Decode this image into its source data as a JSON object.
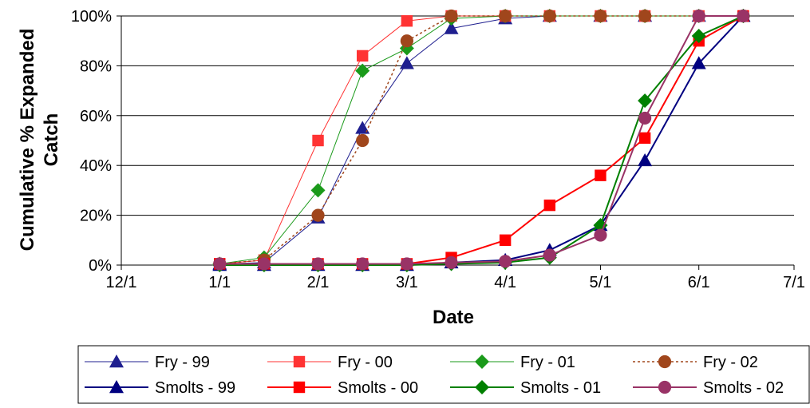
{
  "chart_data": {
    "type": "line",
    "xlabel": "Date",
    "ylabel_line1": "Cumulative % Expanded",
    "ylabel_line2": "Catch",
    "x_ticks": [
      "12/1",
      "1/1",
      "2/1",
      "3/1",
      "4/1",
      "5/1",
      "6/1",
      "7/1"
    ],
    "y_ticks": [
      "0%",
      "20%",
      "40%",
      "60%",
      "80%",
      "100%"
    ],
    "xlim": [
      "12/1",
      "7/1"
    ],
    "ylim": [
      0,
      100
    ],
    "grid": "horizontal",
    "legend": "bottom",
    "series": [
      {
        "name": "Fry - 99",
        "color": "#1f1f8f",
        "marker": "triangle",
        "line_style": "thin",
        "points": [
          [
            "1/1",
            0.5
          ],
          [
            "1/15",
            1
          ],
          [
            "2/1",
            19
          ],
          [
            "2/15",
            55
          ],
          [
            "3/1",
            81
          ],
          [
            "3/15",
            95
          ],
          [
            "4/1",
            99
          ],
          [
            "4/15",
            100
          ],
          [
            "5/1",
            100
          ],
          [
            "5/15",
            100
          ],
          [
            "6/1",
            100
          ],
          [
            "6/15",
            100
          ]
        ]
      },
      {
        "name": "Fry - 00",
        "color": "#ff3333",
        "marker": "square",
        "line_style": "thin",
        "points": [
          [
            "1/1",
            0.5
          ],
          [
            "1/15",
            2
          ],
          [
            "2/1",
            50
          ],
          [
            "2/15",
            84
          ],
          [
            "3/1",
            98
          ],
          [
            "3/15",
            100
          ],
          [
            "4/1",
            100
          ],
          [
            "4/15",
            100
          ],
          [
            "5/1",
            100
          ],
          [
            "5/15",
            100
          ],
          [
            "6/1",
            100
          ],
          [
            "6/15",
            100
          ]
        ]
      },
      {
        "name": "Fry - 01",
        "color": "#1a9a1a",
        "marker": "diamond",
        "line_style": "thin",
        "points": [
          [
            "1/1",
            0.5
          ],
          [
            "1/15",
            3
          ],
          [
            "2/1",
            30
          ],
          [
            "2/15",
            78
          ],
          [
            "3/1",
            87
          ],
          [
            "3/15",
            99
          ],
          [
            "4/1",
            100
          ],
          [
            "4/15",
            100
          ],
          [
            "5/1",
            100
          ],
          [
            "5/15",
            100
          ],
          [
            "6/1",
            100
          ],
          [
            "6/15",
            100
          ]
        ]
      },
      {
        "name": "Fry - 02",
        "color": "#a0461c",
        "marker": "circle",
        "line_style": "dotted",
        "points": [
          [
            "1/1",
            0.5
          ],
          [
            "1/15",
            2
          ],
          [
            "2/1",
            20
          ],
          [
            "2/15",
            50
          ],
          [
            "3/1",
            90
          ],
          [
            "3/15",
            100
          ],
          [
            "4/1",
            100
          ],
          [
            "4/15",
            100
          ],
          [
            "5/1",
            100
          ],
          [
            "5/15",
            100
          ],
          [
            "6/1",
            100
          ],
          [
            "6/15",
            100
          ]
        ]
      },
      {
        "name": "Smolts - 99",
        "color": "#000080",
        "marker": "triangle",
        "line_style": "thick",
        "points": [
          [
            "1/1",
            0
          ],
          [
            "1/15",
            0
          ],
          [
            "2/1",
            0
          ],
          [
            "2/15",
            0
          ],
          [
            "3/1",
            0
          ],
          [
            "3/15",
            1
          ],
          [
            "4/1",
            2
          ],
          [
            "4/15",
            6
          ],
          [
            "5/1",
            16
          ],
          [
            "5/15",
            42
          ],
          [
            "6/1",
            81
          ],
          [
            "6/15",
            100
          ]
        ]
      },
      {
        "name": "Smolts - 00",
        "color": "#ff0000",
        "marker": "square",
        "line_style": "thick",
        "points": [
          [
            "1/1",
            0.5
          ],
          [
            "1/15",
            0.5
          ],
          [
            "2/1",
            0.5
          ],
          [
            "2/15",
            0.5
          ],
          [
            "3/1",
            0.5
          ],
          [
            "3/15",
            3
          ],
          [
            "4/1",
            10
          ],
          [
            "4/15",
            24
          ],
          [
            "5/1",
            36
          ],
          [
            "5/15",
            51
          ],
          [
            "6/1",
            90
          ],
          [
            "6/15",
            100
          ]
        ]
      },
      {
        "name": "Smolts - 01",
        "color": "#008000",
        "marker": "diamond",
        "line_style": "thick",
        "points": [
          [
            "1/1",
            0
          ],
          [
            "1/15",
            0
          ],
          [
            "2/1",
            0
          ],
          [
            "2/15",
            0
          ],
          [
            "3/1",
            0
          ],
          [
            "3/15",
            0.5
          ],
          [
            "4/1",
            1
          ],
          [
            "4/15",
            3
          ],
          [
            "5/1",
            16
          ],
          [
            "5/15",
            66
          ],
          [
            "6/1",
            92
          ],
          [
            "6/15",
            100
          ]
        ]
      },
      {
        "name": "Smolts - 02",
        "color": "#993366",
        "marker": "circle",
        "line_style": "thick",
        "points": [
          [
            "1/1",
            0.5
          ],
          [
            "1/15",
            0.5
          ],
          [
            "2/1",
            0.5
          ],
          [
            "2/15",
            0.5
          ],
          [
            "3/1",
            0.5
          ],
          [
            "3/15",
            1
          ],
          [
            "4/1",
            1.5
          ],
          [
            "4/15",
            4
          ],
          [
            "5/1",
            12
          ],
          [
            "5/15",
            59
          ],
          [
            "6/1",
            100
          ],
          [
            "6/15",
            100
          ]
        ]
      }
    ]
  }
}
